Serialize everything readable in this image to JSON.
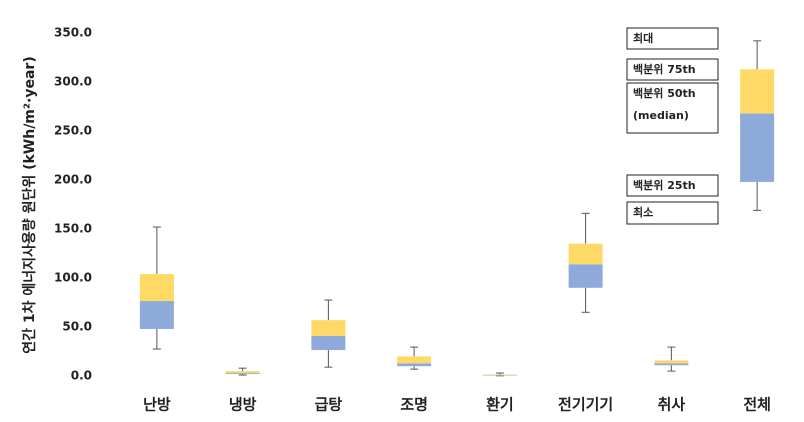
{
  "chart_data": {
    "type": "box",
    "y_label": "연간 1차 에너지사용량 원단위 (kWh/m²·year)",
    "categories": [
      "난방",
      "냉방",
      "급탕",
      "조명",
      "환기",
      "전기기기",
      "취사",
      "전체"
    ],
    "boxes": [
      {
        "min": 27.5,
        "q1": 48,
        "median": 76.5,
        "q3": 104,
        "max": 152
      },
      {
        "min": 1,
        "q1": 2,
        "median": 3,
        "q3": 5,
        "max": 8
      },
      {
        "min": 9,
        "q1": 26.5,
        "median": 41,
        "q3": 57,
        "max": 77.5
      },
      {
        "min": 7,
        "q1": 10,
        "median": 13,
        "q3": 20,
        "max": 29.5
      },
      {
        "min": 0.2,
        "q1": 0.5,
        "median": 0.8,
        "q3": 1.5,
        "max": 3
      },
      {
        "min": 65,
        "q1": 90,
        "median": 114,
        "q3": 135,
        "max": 166
      },
      {
        "min": 5,
        "q1": 11,
        "median": 13,
        "q3": 16,
        "max": 29.5
      },
      {
        "min": 169,
        "q1": 198,
        "median": 268,
        "q3": 313,
        "max": 342
      }
    ],
    "lower_color": "#8eaadb",
    "upper_color": "#ffd966",
    "whisker_color": "#555555",
    "ylim": [
      0,
      350
    ],
    "yticks": [
      {
        "value": 0,
        "label": "0.0"
      },
      {
        "value": 50,
        "label": "50.0"
      },
      {
        "value": 100,
        "label": "100.0"
      },
      {
        "value": 150,
        "label": "150.0"
      },
      {
        "value": 200,
        "label": "200.0"
      },
      {
        "value": 250,
        "label": "250.0"
      },
      {
        "value": 300,
        "label": "300.0"
      },
      {
        "value": 350,
        "label": "350.0"
      }
    ],
    "grid": false,
    "annotations": [
      [
        "최대"
      ],
      [
        "백분위 75th"
      ],
      [
        "백분위 50th",
        "(median)"
      ],
      [
        "백분위 25th"
      ],
      [
        "최소"
      ]
    ]
  }
}
